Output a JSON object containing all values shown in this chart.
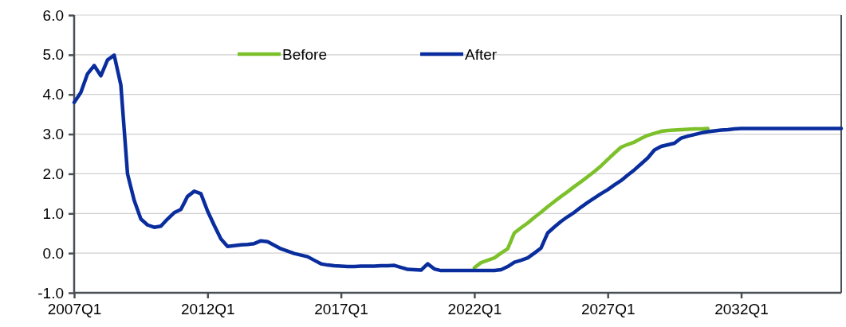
{
  "chart_data": {
    "type": "line",
    "categories": [
      "2007Q1",
      null,
      null,
      null,
      null,
      null,
      null,
      null,
      null,
      null,
      null,
      null,
      null,
      null,
      null,
      null,
      null,
      null,
      null,
      null,
      "2012Q1",
      null,
      null,
      null,
      null,
      null,
      null,
      null,
      null,
      null,
      null,
      null,
      null,
      null,
      null,
      null,
      null,
      null,
      null,
      null,
      "2017Q1",
      null,
      null,
      null,
      null,
      null,
      null,
      null,
      null,
      null,
      null,
      null,
      null,
      null,
      null,
      null,
      null,
      null,
      null,
      null,
      "2022Q1",
      null,
      null,
      null,
      null,
      null,
      null,
      null,
      null,
      null,
      null,
      null,
      null,
      null,
      null,
      null,
      null,
      null,
      null,
      null,
      "2027Q1",
      null,
      null,
      null,
      null,
      null,
      null,
      null,
      null,
      null,
      null,
      null,
      null,
      null,
      null,
      null,
      null,
      null,
      null,
      null,
      "2032Q1",
      null,
      null,
      null,
      null,
      null,
      null,
      null,
      null,
      null,
      null,
      null,
      null,
      null,
      null,
      null
    ],
    "ylim": [
      -1,
      6
    ],
    "yticks": [
      {
        "value": -1,
        "label": "-1.0"
      },
      {
        "value": 0,
        "label": "0.0"
      },
      {
        "value": 1,
        "label": "1.0"
      },
      {
        "value": 2,
        "label": "2.0"
      },
      {
        "value": 3,
        "label": "3.0"
      },
      {
        "value": 4,
        "label": "4.0"
      },
      {
        "value": 5,
        "label": "5.0"
      },
      {
        "value": 6,
        "label": "6.0"
      }
    ],
    "grid": "y",
    "legend": "top",
    "line_style": "solid",
    "marker": "none",
    "series": [
      {
        "name": "Before",
        "color": "#7cc02a",
        "values": [
          null,
          null,
          null,
          null,
          null,
          null,
          null,
          null,
          null,
          null,
          null,
          null,
          null,
          null,
          null,
          null,
          null,
          null,
          null,
          null,
          null,
          null,
          null,
          null,
          null,
          null,
          null,
          null,
          null,
          null,
          null,
          null,
          null,
          null,
          null,
          null,
          null,
          null,
          null,
          null,
          null,
          null,
          null,
          null,
          null,
          null,
          null,
          null,
          null,
          null,
          null,
          null,
          null,
          null,
          null,
          null,
          null,
          null,
          null,
          null,
          -0.37,
          -0.24,
          -0.18,
          -0.12,
          0.0,
          0.11,
          0.51,
          0.64,
          0.76,
          0.9,
          1.03,
          1.17,
          1.3,
          1.43,
          1.55,
          1.68,
          1.8,
          1.93,
          2.06,
          2.2,
          2.36,
          2.52,
          2.67,
          2.74,
          2.8,
          2.89,
          2.97,
          3.02,
          3.07,
          3.09,
          3.1,
          3.11,
          3.12,
          3.13,
          3.13,
          3.14,
          null,
          null,
          null,
          null,
          null,
          null,
          null,
          null,
          null,
          null,
          null,
          null,
          null,
          null,
          null,
          null,
          null,
          null,
          null,
          null
        ]
      },
      {
        "name": "After",
        "color": "#0a2d9e",
        "values": [
          3.8,
          4.05,
          4.52,
          4.73,
          4.47,
          4.87,
          4.99,
          4.24,
          2.0,
          1.33,
          0.86,
          0.71,
          0.65,
          0.68,
          0.86,
          1.02,
          1.1,
          1.43,
          1.56,
          1.5,
          1.06,
          0.7,
          0.36,
          0.17,
          0.19,
          0.21,
          0.22,
          0.24,
          0.31,
          0.29,
          0.2,
          0.11,
          0.05,
          -0.01,
          -0.05,
          -0.09,
          -0.18,
          -0.27,
          -0.3,
          -0.32,
          -0.33,
          -0.34,
          -0.34,
          -0.33,
          -0.33,
          -0.33,
          -0.32,
          -0.32,
          -0.31,
          -0.36,
          -0.41,
          -0.42,
          -0.43,
          -0.27,
          -0.4,
          -0.44,
          -0.44,
          -0.44,
          -0.44,
          -0.44,
          -0.44,
          -0.44,
          -0.44,
          -0.44,
          -0.42,
          -0.34,
          -0.23,
          -0.18,
          -0.12,
          0.0,
          0.13,
          0.51,
          0.66,
          0.8,
          0.92,
          1.03,
          1.16,
          1.28,
          1.39,
          1.5,
          1.6,
          1.72,
          1.83,
          1.97,
          2.1,
          2.25,
          2.4,
          2.6,
          2.69,
          2.73,
          2.77,
          2.9,
          2.95,
          2.99,
          3.03,
          3.06,
          3.08,
          3.1,
          3.11,
          3.13,
          3.14,
          3.14,
          3.14,
          3.14,
          3.14,
          3.14,
          3.14,
          3.14,
          3.14,
          3.14,
          3.14,
          3.14,
          3.14,
          3.14,
          3.14,
          3.14
        ]
      }
    ]
  }
}
